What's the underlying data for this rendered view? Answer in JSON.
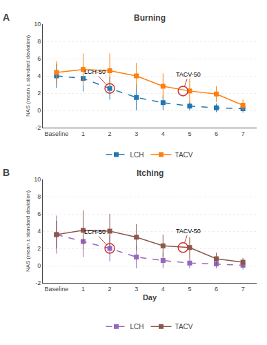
{
  "chart_data": [
    {
      "type": "line",
      "title": "Burning",
      "panel_label": "A",
      "ylabel": "NAS (mean ± standard deviation)",
      "categories": [
        "Baseline",
        "1",
        "2",
        "3",
        "4",
        "5",
        "6",
        "7"
      ],
      "series": [
        {
          "name": "LCH",
          "values": [
            4.0,
            3.7,
            2.55,
            1.5,
            0.9,
            0.5,
            0.3,
            0.2
          ],
          "error": [
            1.4,
            1.5,
            1.3,
            1.5,
            0.85,
            0.5,
            0.5,
            0.45
          ],
          "line_style": "dashed",
          "marker": "square"
        },
        {
          "name": "TACV",
          "values": [
            4.4,
            4.75,
            4.6,
            4.0,
            2.8,
            2.25,
            1.9,
            0.6
          ],
          "error": [
            1.3,
            1.85,
            2.0,
            1.5,
            1.5,
            1.45,
            0.9,
            0.65
          ],
          "line_style": "solid",
          "marker": "square"
        }
      ],
      "annotations": [
        {
          "text": "LCH-50",
          "x": 2,
          "y": 2.55,
          "color": "#cc3333"
        },
        {
          "text": "TACV-50",
          "x": 4.75,
          "y": 2.25,
          "color": "#cc3333"
        }
      ],
      "ylim": [
        -2,
        10
      ],
      "yticks": [
        -2,
        0,
        2,
        4,
        6,
        8,
        10
      ],
      "grid": true,
      "legend": "bottom"
    },
    {
      "type": "line",
      "title": "Itching",
      "panel_label": "B",
      "ylabel": "NAS (mean ± standard deviation)",
      "xlabel": "Day",
      "categories": [
        "Baseline",
        "1",
        "2",
        "3",
        "4",
        "5",
        "6",
        "7"
      ],
      "series": [
        {
          "name": "LCH",
          "values": [
            3.6,
            2.8,
            2.0,
            1.0,
            0.6,
            0.3,
            0.2,
            0.05
          ],
          "error": [
            2.2,
            1.8,
            1.5,
            1.3,
            0.9,
            0.6,
            0.5,
            0.5
          ],
          "line_style": "dashed",
          "marker": "square"
        },
        {
          "name": "TACV",
          "values": [
            3.6,
            4.1,
            4.0,
            3.3,
            2.3,
            2.1,
            0.8,
            0.4
          ],
          "error": [
            1.6,
            2.3,
            2.0,
            1.5,
            1.3,
            1.2,
            0.7,
            0.5
          ],
          "line_style": "solid",
          "marker": "square"
        }
      ],
      "annotations": [
        {
          "text": "LCH-50",
          "x": 2,
          "y": 2.0,
          "color": "#cc3333"
        },
        {
          "text": "TACV-50",
          "x": 4.75,
          "y": 2.1,
          "color": "#cc3333"
        }
      ],
      "ylim": [
        -2,
        10
      ],
      "yticks": [
        -2,
        0,
        2,
        4,
        6,
        8,
        10
      ],
      "grid": true,
      "legend": "bottom"
    }
  ]
}
